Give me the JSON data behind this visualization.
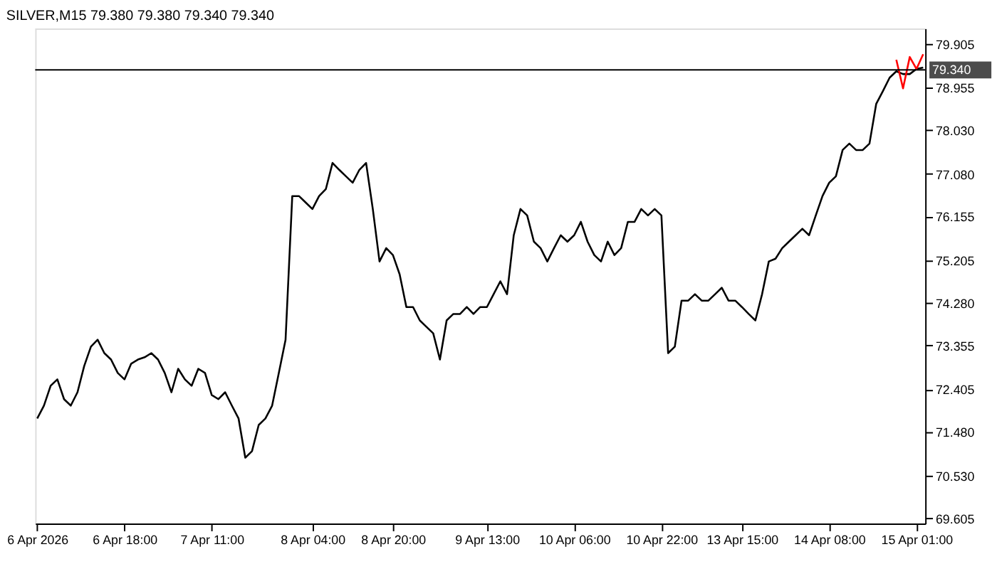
{
  "chart_data": {
    "type": "line",
    "title": "SILVER,M15  79.380 79.380 79.340 79.340",
    "categories": [
      "6 Apr 2026",
      null,
      null,
      null,
      null,
      null,
      null,
      null,
      null,
      null,
      null,
      null,
      null,
      "6 Apr 18:00",
      null,
      null,
      null,
      null,
      null,
      null,
      null,
      null,
      null,
      null,
      null,
      null,
      "7 Apr 11:00",
      null,
      null,
      null,
      null,
      null,
      null,
      null,
      null,
      null,
      null,
      null,
      null,
      null,
      null,
      "8 Apr 04:00",
      null,
      null,
      null,
      null,
      null,
      null,
      null,
      null,
      null,
      null,
      null,
      "8 Apr 20:00",
      null,
      null,
      null,
      null,
      null,
      null,
      null,
      null,
      null,
      null,
      null,
      null,
      null,
      "9 Apr 13:00",
      null,
      null,
      null,
      null,
      null,
      null,
      null,
      null,
      null,
      null,
      null,
      null,
      "10 Apr 06:00",
      null,
      null,
      null,
      null,
      null,
      null,
      null,
      null,
      null,
      null,
      null,
      null,
      "10 Apr 22:00",
      null,
      null,
      null,
      null,
      null,
      null,
      null,
      null,
      null,
      null,
      null,
      "13 Apr 15:00",
      null,
      null,
      null,
      null,
      null,
      null,
      null,
      null,
      null,
      null,
      null,
      null,
      "14 Apr 08:00",
      null,
      null,
      null,
      null,
      null,
      null,
      null,
      null,
      null,
      null,
      null,
      null,
      "15 Apr 01:00",
      null
    ],
    "series": [
      {
        "color": "#000000",
        "values": [
          71.77,
          72.05,
          72.48,
          72.62,
          72.19,
          72.05,
          72.34,
          72.91,
          73.33,
          73.48,
          73.19,
          73.05,
          72.76,
          72.62,
          72.96,
          73.05,
          73.1,
          73.19,
          73.05,
          72.76,
          72.34,
          72.85,
          72.62,
          72.48,
          72.85,
          72.76,
          72.28,
          72.19,
          72.34,
          72.05,
          71.77,
          70.92,
          71.06,
          71.63,
          71.77,
          72.05,
          72.76,
          73.48,
          76.6,
          76.6,
          76.46,
          76.32,
          76.6,
          76.75,
          77.32,
          77.17,
          77.03,
          76.89,
          77.17,
          77.32,
          76.32,
          75.18,
          75.47,
          75.32,
          74.9,
          74.19,
          74.19,
          73.9,
          73.76,
          73.62,
          73.05,
          73.9,
          74.04,
          74.04,
          74.19,
          74.04,
          74.19,
          74.19,
          74.47,
          74.75,
          74.47,
          75.75,
          76.32,
          76.18,
          75.61,
          75.47,
          75.18,
          75.47,
          75.75,
          75.61,
          75.75,
          76.04,
          75.61,
          75.32,
          75.18,
          75.61,
          75.32,
          75.47,
          76.04,
          76.04,
          76.32,
          76.18,
          76.32,
          76.18,
          73.19,
          73.33,
          74.33,
          74.33,
          74.47,
          74.33,
          74.33,
          74.47,
          74.61,
          74.33,
          74.33,
          74.19,
          74.04,
          73.9,
          74.47,
          75.18,
          75.24,
          75.47,
          75.61,
          75.75,
          75.89,
          75.75,
          76.18,
          76.6,
          76.89,
          77.03,
          77.6,
          77.74,
          77.6,
          77.6,
          77.74,
          78.6,
          78.88,
          79.17,
          79.31,
          79.25,
          79.25,
          79.36,
          79.39
        ]
      },
      {
        "color": "#ff0000",
        "values": [
          null,
          null,
          null,
          null,
          null,
          null,
          null,
          null,
          null,
          null,
          null,
          null,
          null,
          null,
          null,
          null,
          null,
          null,
          null,
          null,
          null,
          null,
          null,
          null,
          null,
          null,
          null,
          null,
          null,
          null,
          null,
          null,
          null,
          null,
          null,
          null,
          null,
          null,
          null,
          null,
          null,
          null,
          null,
          null,
          null,
          null,
          null,
          null,
          null,
          null,
          null,
          null,
          null,
          null,
          null,
          null,
          null,
          null,
          null,
          null,
          null,
          null,
          null,
          null,
          null,
          null,
          null,
          null,
          null,
          null,
          null,
          null,
          null,
          null,
          null,
          null,
          null,
          null,
          null,
          null,
          null,
          null,
          null,
          null,
          null,
          null,
          null,
          null,
          null,
          null,
          null,
          null,
          null,
          null,
          null,
          null,
          null,
          null,
          null,
          null,
          null,
          null,
          null,
          null,
          null,
          null,
          null,
          null,
          null,
          null,
          null,
          null,
          null,
          null,
          null,
          null,
          null,
          null,
          null,
          null,
          null,
          null,
          null,
          null,
          null,
          null,
          null,
          null,
          79.56,
          78.94,
          79.62,
          79.36,
          79.68
        ]
      }
    ],
    "ylim": [
      69.49,
      80.24
    ],
    "yticks": [
      {
        "value": 69.605,
        "label": "69.605"
      },
      {
        "value": 70.53,
        "label": "70.530"
      },
      {
        "value": 71.48,
        "label": "71.480"
      },
      {
        "value": 72.405,
        "label": "72.405"
      },
      {
        "value": 73.355,
        "label": "73.355"
      },
      {
        "value": 74.28,
        "label": "74.280"
      },
      {
        "value": 75.205,
        "label": "75.205"
      },
      {
        "value": 76.155,
        "label": "76.155"
      },
      {
        "value": 77.08,
        "label": "77.080"
      },
      {
        "value": 78.03,
        "label": "78.030"
      },
      {
        "value": 78.955,
        "label": "78.955"
      },
      {
        "value": 79.905,
        "label": "79.905"
      }
    ],
    "ref_lines": [
      {
        "axis": "y",
        "value": 79.34,
        "label": "79.340",
        "color": "#000000"
      }
    ],
    "grid": false,
    "marker": "none",
    "line_style": "solid"
  }
}
